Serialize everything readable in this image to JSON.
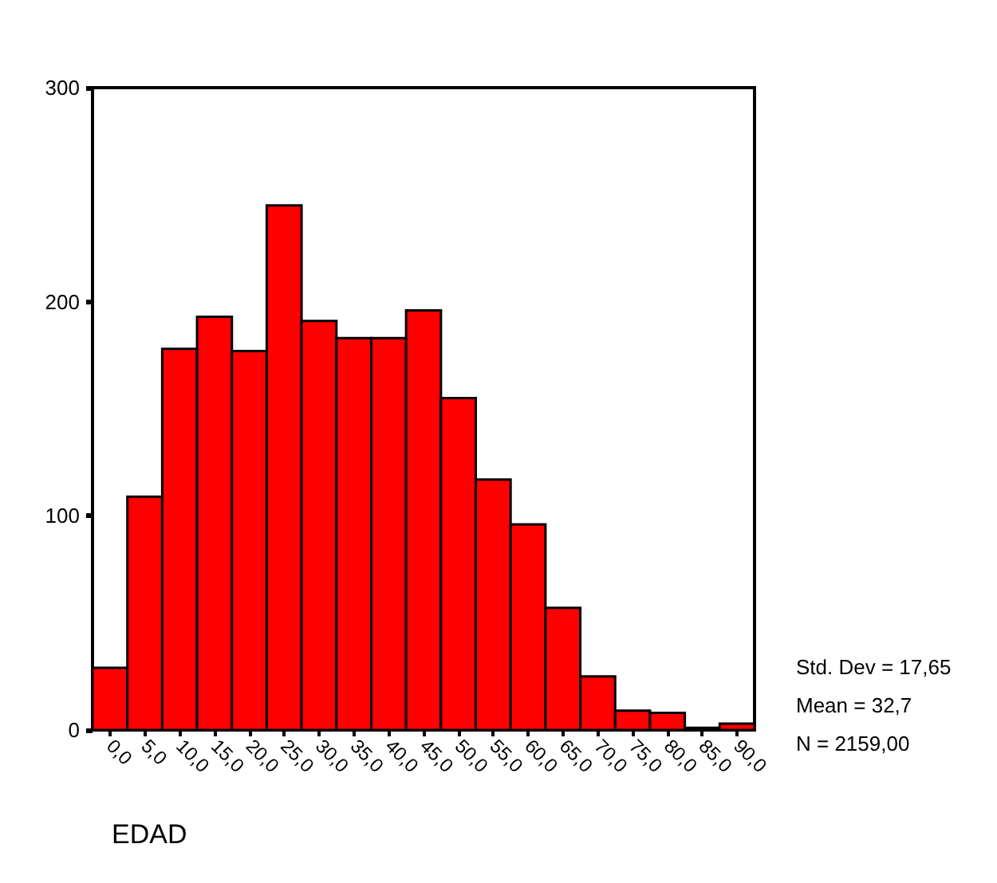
{
  "chart_data": {
    "type": "histogram",
    "xlabel": "EDAD",
    "bins": [
      -2.5,
      2.5,
      7.5,
      12.5,
      17.5,
      22.5,
      27.5,
      32.5,
      37.5,
      42.5,
      47.5,
      52.5,
      57.5,
      62.5,
      67.5,
      72.5,
      77.5,
      82.5,
      87.5,
      92.5
    ],
    "values": [
      29,
      109,
      178,
      193,
      177,
      245,
      191,
      183,
      183,
      196,
      155,
      117,
      96,
      57,
      25,
      9,
      8,
      1,
      3
    ],
    "color": "#ff0000",
    "xlim": [
      -2.5,
      92.5
    ],
    "xticks": [
      {
        "value": 0,
        "label": "0,0"
      },
      {
        "value": 5,
        "label": "5,0"
      },
      {
        "value": 10,
        "label": "10,0"
      },
      {
        "value": 15,
        "label": "15,0"
      },
      {
        "value": 20,
        "label": "20,0"
      },
      {
        "value": 25,
        "label": "25,0"
      },
      {
        "value": 30,
        "label": "30,0"
      },
      {
        "value": 35,
        "label": "35,0"
      },
      {
        "value": 40,
        "label": "40,0"
      },
      {
        "value": 45,
        "label": "45,0"
      },
      {
        "value": 50,
        "label": "50,0"
      },
      {
        "value": 55,
        "label": "55,0"
      },
      {
        "value": 60,
        "label": "60,0"
      },
      {
        "value": 65,
        "label": "65,0"
      },
      {
        "value": 70,
        "label": "70,0"
      },
      {
        "value": 75,
        "label": "75,0"
      },
      {
        "value": 80,
        "label": "80,0"
      },
      {
        "value": 85,
        "label": "85,0"
      },
      {
        "value": 90,
        "label": "90,0"
      }
    ],
    "ylim": [
      0,
      300
    ],
    "yticks": [
      0,
      100,
      200,
      300
    ],
    "grid": false,
    "annotations": [
      "Std. Dev = 17,65",
      "Mean = 32,7",
      "N = 2159,00"
    ]
  }
}
